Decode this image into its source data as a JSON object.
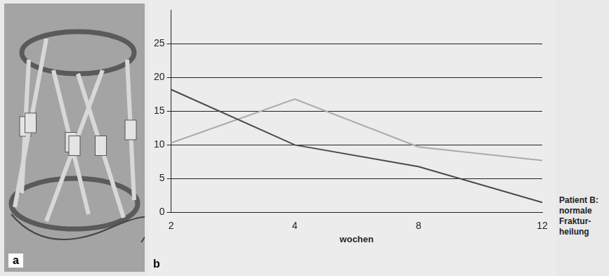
{
  "photo": {
    "label": "a"
  },
  "chart_data": {
    "type": "line",
    "panel_label": "b",
    "categories": [
      "2",
      "4",
      "8",
      "12"
    ],
    "x_label": "wochen",
    "series": [
      {
        "color": "#4a4a4a",
        "values": [
          18.2,
          10,
          6.8,
          1.5
        ]
      },
      {
        "color": "#ababab",
        "values": [
          10.3,
          16.8,
          9.7,
          7.7
        ]
      }
    ],
    "ylim": [
      0,
      30
    ],
    "yticks": [
      0,
      5,
      10,
      15,
      20,
      25
    ],
    "grid": true,
    "marker": "none",
    "annotation": [
      "Patient B:",
      "normale",
      "Fraktur-",
      "heilung"
    ]
  }
}
